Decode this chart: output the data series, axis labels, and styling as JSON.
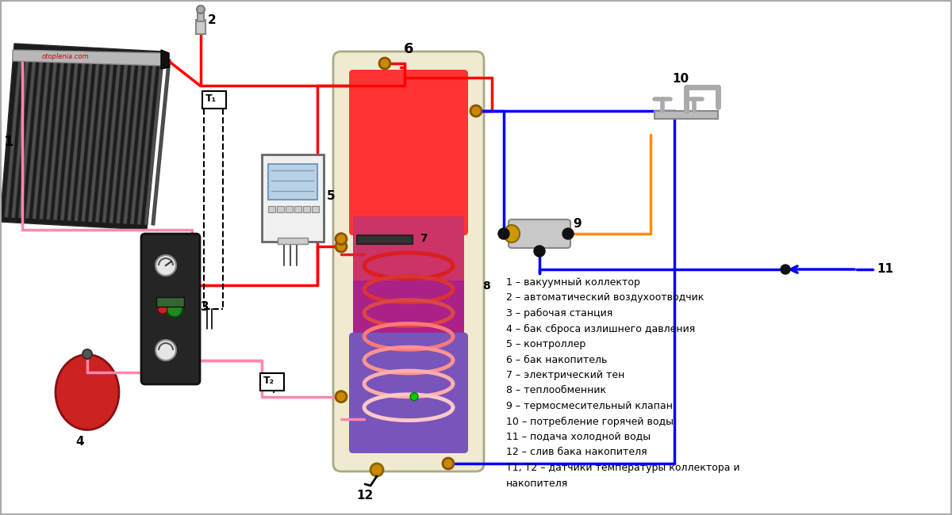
{
  "bg_color": "#ffffff",
  "legend_items": [
    "1 – вакуумный коллектор",
    "2 – автоматический воздухоотводчик",
    "3 – рабочая станция",
    "4 – бак сброса излишнего давления",
    "5 – контроллер",
    "6 – бак накопитель",
    "7 – электрический тен",
    "8 – теплообменник",
    "9 – термосмесительный клапан",
    "10 – потребление горячей воды",
    "11 – подача холодной воды",
    "12 – слив бака накопителя",
    "T1, T2 – датчики температуры коллектора и",
    "накопителя"
  ],
  "red_color": "#ff0000",
  "pink_color": "#ff88aa",
  "blue_color": "#0000ff",
  "orange_color": "#ff8c00",
  "tank_outer_color": "#f0ead0",
  "tank_top_color": "#ff3333",
  "tank_mid_color": "#cc3377",
  "tank_bot_color": "#7755bb"
}
